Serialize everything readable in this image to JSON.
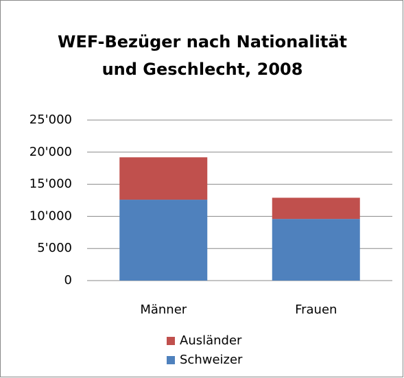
{
  "chart_data": {
    "type": "stacked_bar",
    "title": [
      "WEF-Bezüger nach Nationalität",
      "und Geschlecht, 2008"
    ],
    "categories": [
      "Männer",
      "Frauen"
    ],
    "series": [
      {
        "name": "Schweizer",
        "color": "#4f81bd",
        "values": [
          12600,
          9600
        ]
      },
      {
        "name": "Ausländer",
        "color": "#c0504d",
        "values": [
          6600,
          3300
        ]
      }
    ],
    "ylim": [
      0,
      25000
    ],
    "yticks": [
      0,
      {
        "value": 5000,
        "label": "5'000"
      },
      {
        "value": 10000,
        "label": "10'000"
      },
      {
        "value": 15000,
        "label": "15'000"
      },
      {
        "value": 20000,
        "label": "20'000"
      },
      {
        "value": 25000,
        "label": "25'000"
      }
    ],
    "grid": true
  }
}
